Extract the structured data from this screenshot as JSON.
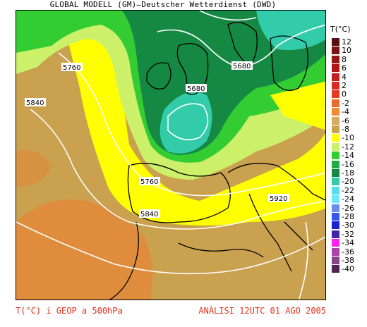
{
  "header": {
    "title": "GLOBAL MODELL (GM)—Deutscher Wetterdienst (DWD)"
  },
  "legend": {
    "title": "T(°C)",
    "items": [
      {
        "label": "12",
        "color": "#5a1010"
      },
      {
        "label": "10",
        "color": "#7a1414"
      },
      {
        "label": "8",
        "color": "#961616"
      },
      {
        "label": "6",
        "color": "#b01818"
      },
      {
        "label": "4",
        "color": "#c41f1f"
      },
      {
        "label": "2",
        "color": "#d62a22"
      },
      {
        "label": "0",
        "color": "#e43a22"
      },
      {
        "label": "-2",
        "color": "#ee6a2a"
      },
      {
        "label": "-4",
        "color": "#f28c30"
      },
      {
        "label": "-6",
        "color": "#d8aa5c"
      },
      {
        "label": "-8",
        "color": "#c9a14f"
      },
      {
        "label": "-10",
        "color": "#ffff00"
      },
      {
        "label": "-12",
        "color": "#ccf06a"
      },
      {
        "label": "-14",
        "color": "#33cc33"
      },
      {
        "label": "-16",
        "color": "#1faa44"
      },
      {
        "label": "-18",
        "color": "#158844"
      },
      {
        "label": "-20",
        "color": "#33ccaa"
      },
      {
        "label": "-22",
        "color": "#55ddee"
      },
      {
        "label": "-24",
        "color": "#66e8ff"
      },
      {
        "label": "-26",
        "color": "#6a8cf0"
      },
      {
        "label": "-28",
        "color": "#3355ee"
      },
      {
        "label": "-30",
        "color": "#1a22cc"
      },
      {
        "label": "-32",
        "color": "#4422aa"
      },
      {
        "label": "-34",
        "color": "#ff22ee"
      },
      {
        "label": "-36",
        "color": "#aa44aa"
      },
      {
        "label": "-38",
        "color": "#884488"
      },
      {
        "label": "-40",
        "color": "#552255"
      }
    ]
  },
  "contours": [
    "5760",
    "5840",
    "5680",
    "5680",
    "5760",
    "5840",
    "5920"
  ],
  "colors": {
    "land_warm": "#c9a14f",
    "land_hot": "#e38a3a",
    "yellow": "#ffff00",
    "light_green": "#ccf06a",
    "green": "#33cc33",
    "dark_green": "#158844",
    "teal": "#33ccaa",
    "contour": "#ffffff",
    "footer_text": "#e4311d"
  },
  "footer": {
    "left": "T(°C) i GEOP a 500hPa",
    "right": "ANÀLISI 12UTC 01 AGO 2005"
  }
}
